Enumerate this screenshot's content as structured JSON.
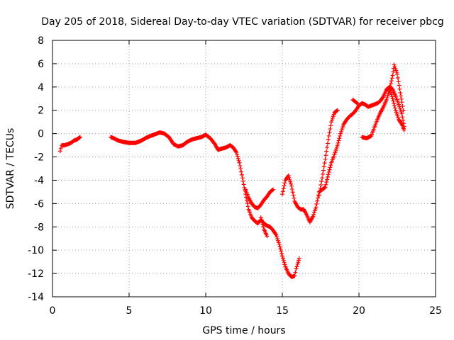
{
  "chart_data": {
    "type": "scatter",
    "title": "Day 205 of 2018, Sidereal Day-to-day VTEC variation (SDTVAR) for receiver pbcg",
    "xlabel": "GPS time / hours",
    "ylabel": "SDTVAR / TECUs",
    "xlim": [
      0,
      25
    ],
    "ylim": [
      -14,
      8
    ],
    "xticks": [
      0,
      5,
      10,
      15,
      20,
      25
    ],
    "yticks": [
      -14,
      -12,
      -10,
      -8,
      -6,
      -4,
      -2,
      0,
      2,
      4,
      6,
      8
    ],
    "grid": true,
    "marker": "+",
    "color": "#ff0000",
    "series": [
      {
        "name": "SDTVAR",
        "segments": [
          [
            [
              0.5,
              -1.5
            ],
            [
              0.6,
              -1.0
            ],
            [
              0.8,
              -1.0
            ],
            [
              1.0,
              -0.9
            ],
            [
              1.2,
              -0.8
            ],
            [
              1.4,
              -0.6
            ],
            [
              1.6,
              -0.5
            ],
            [
              1.8,
              -0.3
            ]
          ],
          [
            [
              3.8,
              -0.3
            ],
            [
              4.0,
              -0.4
            ],
            [
              4.3,
              -0.6
            ],
            [
              4.6,
              -0.7
            ],
            [
              5.0,
              -0.8
            ],
            [
              5.4,
              -0.8
            ],
            [
              5.8,
              -0.6
            ],
            [
              6.2,
              -0.3
            ],
            [
              6.6,
              -0.1
            ],
            [
              7.0,
              0.1
            ],
            [
              7.3,
              0.0
            ],
            [
              7.6,
              -0.3
            ],
            [
              7.9,
              -0.9
            ],
            [
              8.2,
              -1.1
            ],
            [
              8.5,
              -1.0
            ],
            [
              8.8,
              -0.7
            ],
            [
              9.1,
              -0.5
            ],
            [
              9.4,
              -0.4
            ],
            [
              9.7,
              -0.3
            ],
            [
              10.0,
              -0.1
            ],
            [
              10.3,
              -0.4
            ],
            [
              10.6,
              -0.9
            ],
            [
              10.8,
              -1.4
            ],
            [
              11.0,
              -1.3
            ],
            [
              11.3,
              -1.2
            ],
            [
              11.6,
              -1.0
            ],
            [
              11.8,
              -1.2
            ],
            [
              12.0,
              -1.6
            ],
            [
              12.2,
              -2.5
            ],
            [
              12.4,
              -3.8
            ],
            [
              12.6,
              -5.2
            ],
            [
              12.8,
              -6.5
            ],
            [
              13.0,
              -7.2
            ],
            [
              13.2,
              -7.5
            ],
            [
              13.4,
              -7.7
            ],
            [
              13.6,
              -7.4
            ],
            [
              13.8,
              -7.7
            ],
            [
              14.0,
              -7.9
            ],
            [
              14.2,
              -8.0
            ],
            [
              14.4,
              -8.3
            ],
            [
              14.6,
              -8.7
            ],
            [
              14.8,
              -9.5
            ],
            [
              15.0,
              -10.5
            ],
            [
              15.2,
              -11.4
            ],
            [
              15.4,
              -12.0
            ],
            [
              15.6,
              -12.3
            ],
            [
              15.8,
              -12.2
            ],
            [
              15.9,
              -11.6
            ],
            [
              16.0,
              -11.2
            ],
            [
              16.1,
              -10.7
            ]
          ],
          [
            [
              12.6,
              -4.8
            ],
            [
              12.8,
              -5.5
            ],
            [
              13.0,
              -6.0
            ],
            [
              13.2,
              -6.3
            ],
            [
              13.4,
              -6.4
            ],
            [
              13.6,
              -6.1
            ],
            [
              13.8,
              -5.7
            ],
            [
              14.0,
              -5.4
            ],
            [
              14.2,
              -5.0
            ],
            [
              14.4,
              -4.8
            ]
          ],
          [
            [
              13.6,
              -7.2
            ],
            [
              13.8,
              -8.2
            ],
            [
              14.0,
              -8.8
            ]
          ],
          [
            [
              15.0,
              -5.2
            ],
            [
              15.2,
              -4.0
            ],
            [
              15.4,
              -3.6
            ],
            [
              15.6,
              -4.5
            ],
            [
              15.8,
              -5.8
            ],
            [
              16.0,
              -6.3
            ],
            [
              16.2,
              -6.5
            ],
            [
              16.4,
              -6.5
            ],
            [
              16.6,
              -7.0
            ],
            [
              16.8,
              -7.6
            ],
            [
              17.0,
              -7.1
            ],
            [
              17.2,
              -6.3
            ],
            [
              17.4,
              -5.0
            ],
            [
              17.6,
              -4.8
            ],
            [
              17.8,
              -4.6
            ],
            [
              18.0,
              -3.5
            ],
            [
              18.2,
              -2.5
            ],
            [
              18.4,
              -1.8
            ],
            [
              18.6,
              -1.0
            ],
            [
              18.8,
              0.0
            ],
            [
              19.0,
              0.8
            ],
            [
              19.2,
              1.2
            ],
            [
              19.4,
              1.5
            ],
            [
              19.6,
              1.7
            ],
            [
              19.8,
              2.0
            ],
            [
              20.0,
              2.4
            ],
            [
              20.2,
              2.6
            ],
            [
              20.4,
              2.5
            ],
            [
              20.6,
              2.3
            ],
            [
              20.8,
              2.4
            ],
            [
              21.0,
              2.5
            ],
            [
              21.2,
              2.6
            ],
            [
              21.4,
              2.8
            ],
            [
              21.6,
              3.2
            ],
            [
              21.8,
              3.8
            ],
            [
              22.0,
              4.0
            ],
            [
              22.2,
              3.8
            ],
            [
              22.4,
              3.2
            ],
            [
              22.6,
              2.5
            ],
            [
              22.8,
              1.7
            ],
            [
              22.95,
              0.6
            ]
          ],
          [
            [
              17.4,
              -5.3
            ],
            [
              17.6,
              -3.8
            ],
            [
              17.8,
              -2.2
            ],
            [
              18.0,
              -0.5
            ],
            [
              18.2,
              1.0
            ],
            [
              18.4,
              1.8
            ],
            [
              18.6,
              2.0
            ]
          ],
          [
            [
              19.6,
              2.9
            ],
            [
              19.9,
              2.6
            ]
          ],
          [
            [
              20.2,
              -0.3
            ],
            [
              20.5,
              -0.4
            ],
            [
              20.8,
              -0.2
            ],
            [
              21.0,
              0.5
            ],
            [
              21.2,
              1.2
            ],
            [
              21.4,
              1.8
            ],
            [
              21.6,
              2.3
            ],
            [
              21.8,
              2.9
            ],
            [
              22.0,
              3.8
            ],
            [
              22.2,
              5.0
            ],
            [
              22.3,
              5.9
            ],
            [
              22.5,
              5.1
            ],
            [
              22.7,
              3.5
            ],
            [
              22.8,
              2.7
            ],
            [
              22.9,
              2.0
            ]
          ],
          [
            [
              22.0,
              3.9
            ],
            [
              22.2,
              3.0
            ],
            [
              22.4,
              2.0
            ],
            [
              22.6,
              1.2
            ],
            [
              22.8,
              0.8
            ],
            [
              22.95,
              0.3
            ]
          ]
        ]
      }
    ]
  }
}
